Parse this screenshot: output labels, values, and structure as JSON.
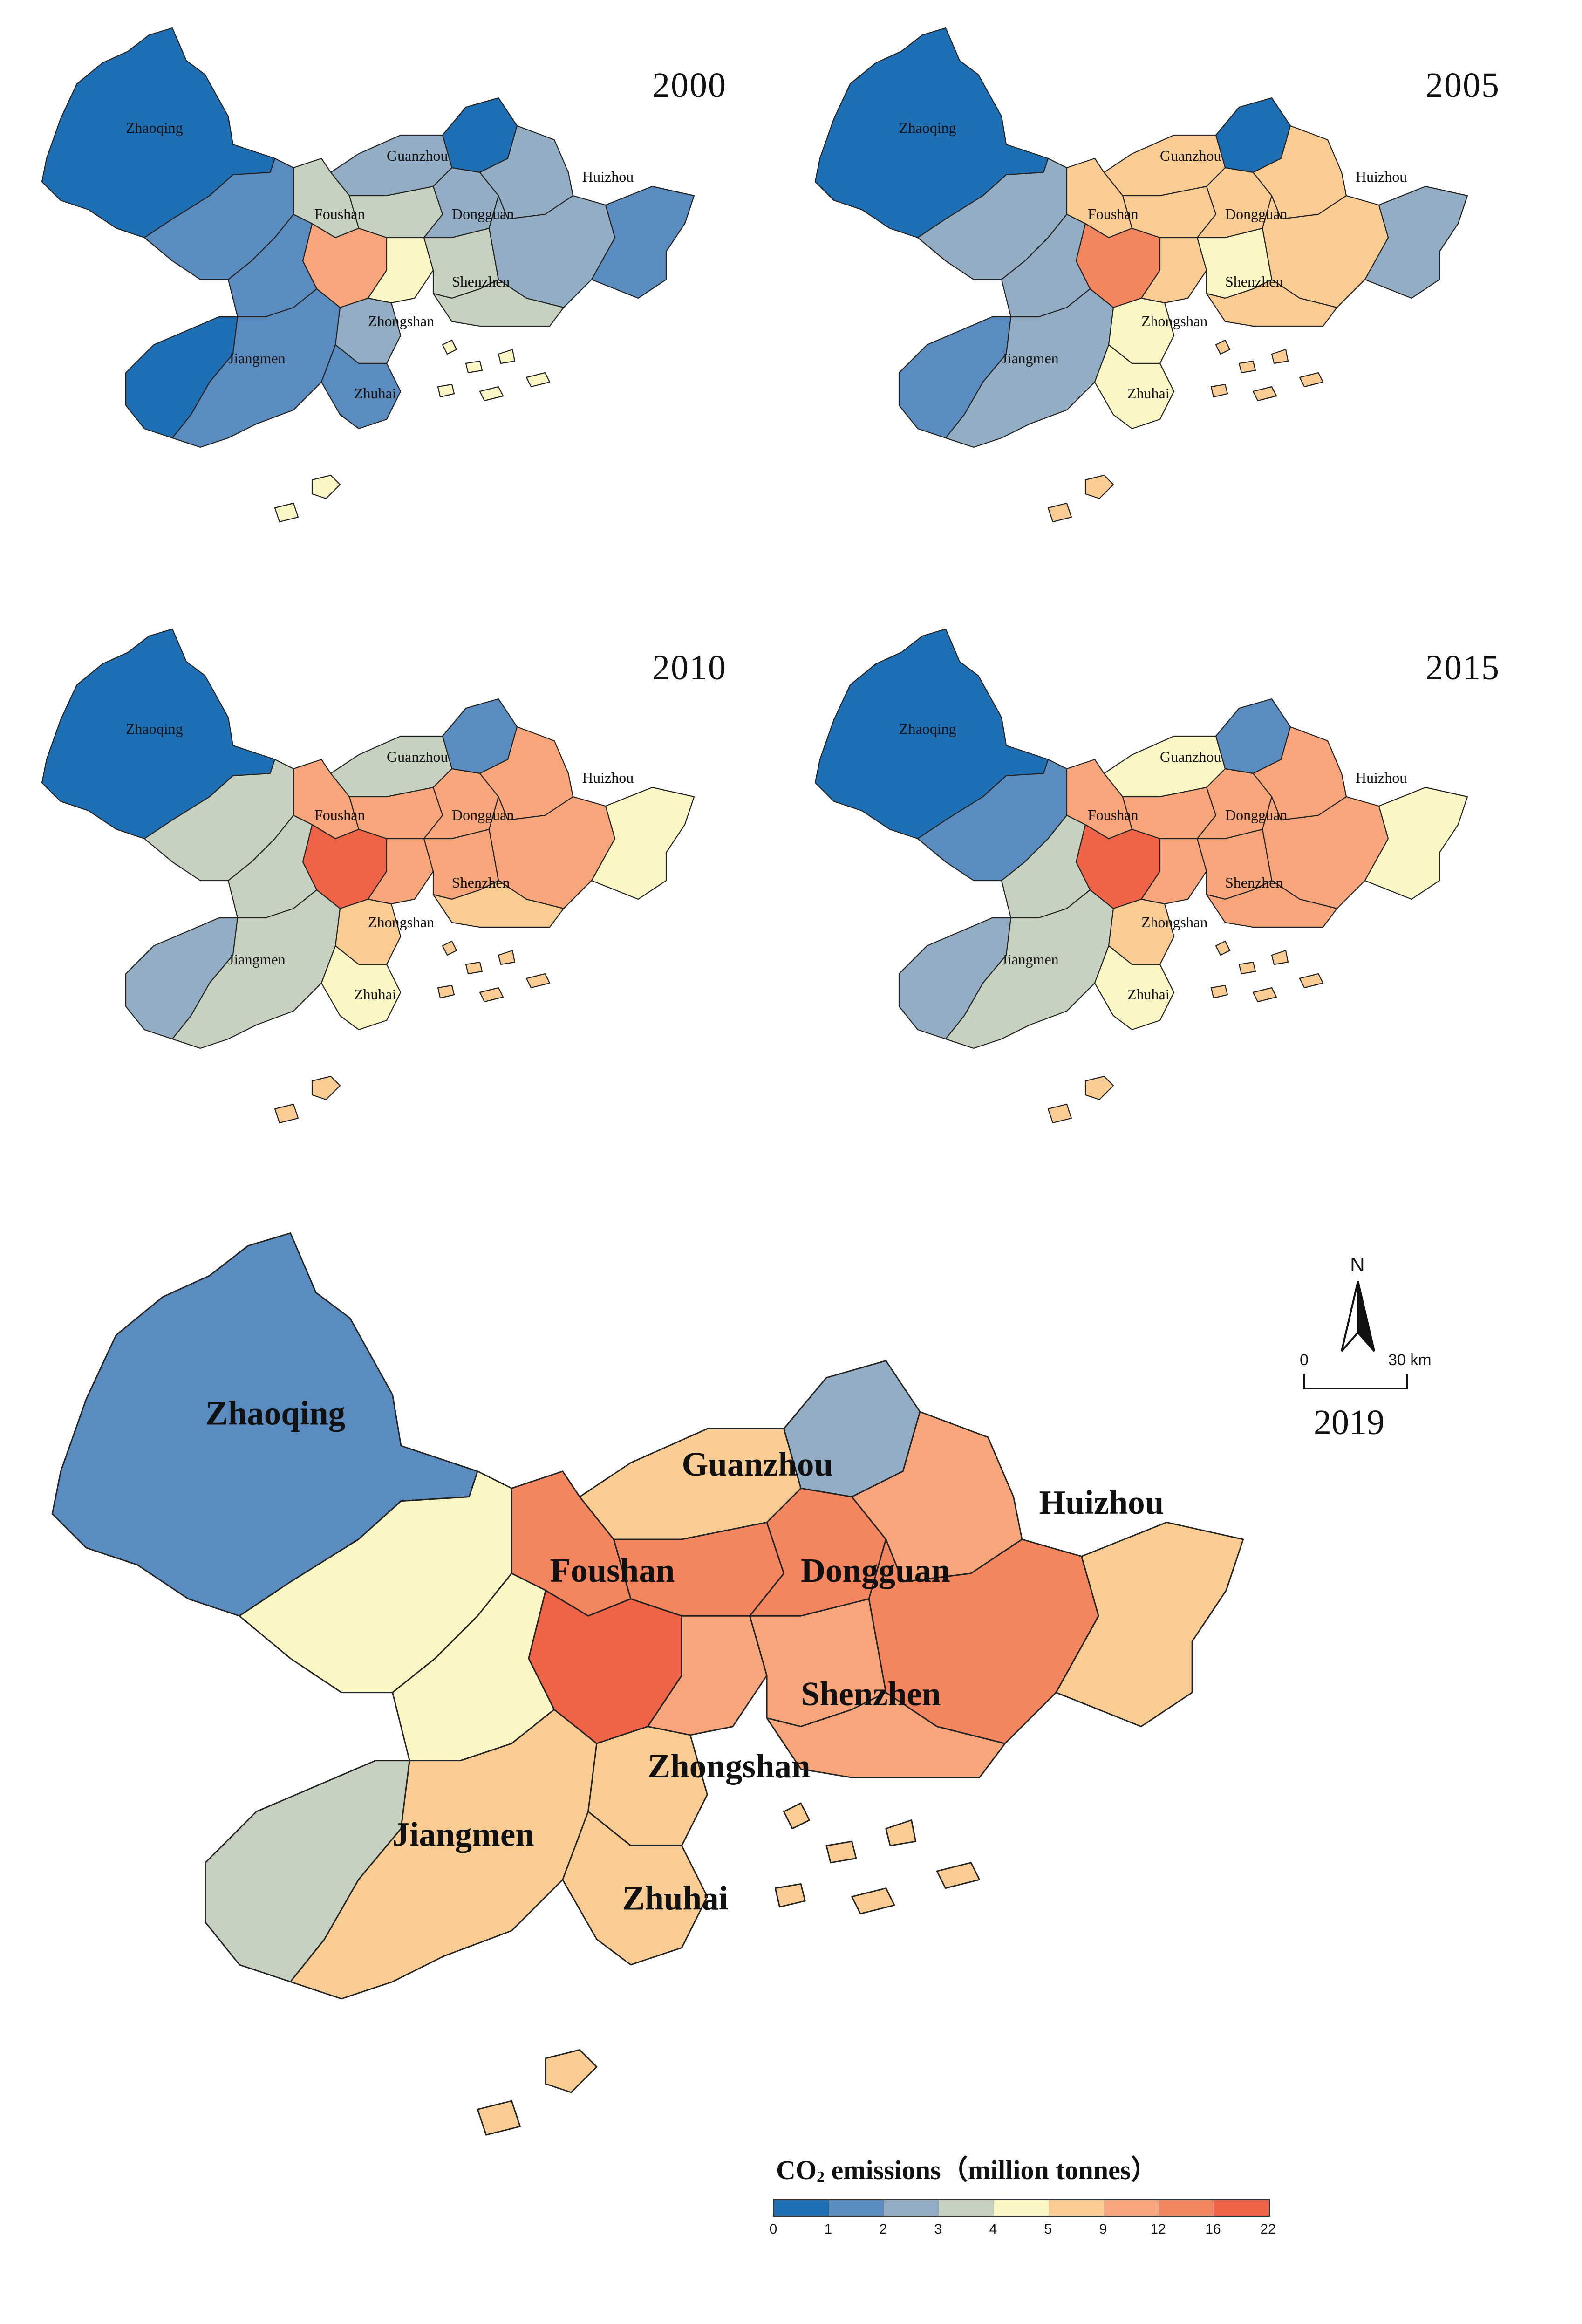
{
  "panels": [
    {
      "year": "2000"
    },
    {
      "year": "2005"
    },
    {
      "year": "2010"
    },
    {
      "year": "2015"
    },
    {
      "year": "2019"
    }
  ],
  "city_labels": [
    "Zhaoqing",
    "Guanzhou",
    "Huizhou",
    "Foushan",
    "Dongguan",
    "Shenzhen",
    "Zhongshan",
    "Jiangmen",
    "Zhuhai"
  ],
  "legend": {
    "title_prefix": "CO",
    "title_sub": "2",
    "title_suffix": " emissions（million  tonnes）",
    "ticks": [
      "0",
      "1",
      "2",
      "3",
      "4",
      "5",
      "9",
      "12",
      "16",
      "22"
    ],
    "colors": [
      "#1f6fb5",
      "#5b8cc0",
      "#93adc4",
      "#c6d1c0",
      "#fbf7c4",
      "#f8cc92",
      "#f6a67a",
      "#f3855f",
      "#ef6446"
    ]
  },
  "north_label": "N",
  "scale": {
    "start": "0",
    "end": "30 km"
  },
  "region_classes": {
    "2000": {
      "zhaoqing": 0,
      "zhaoqing_s": 1,
      "guangzhou_n": 2,
      "guangzhou_c": 3,
      "guangzhou_e": 2,
      "conghua": 0,
      "huizhou_n": 2,
      "huizhou_c": 2,
      "huizhou_e": 1,
      "foshan": 6,
      "foshan_n": 3,
      "jiangmen_n": 1,
      "jiangmen_w": 0,
      "jiangmen_s": 1,
      "dongguan": 3,
      "shenzhen": 3,
      "zhongshan": 2,
      "zhuhai": 1,
      "panyu": 4,
      "islands": 4
    },
    "2005": {
      "zhaoqing": 0,
      "zhaoqing_s": 2,
      "guangzhou_n": 5,
      "guangzhou_c": 5,
      "guangzhou_e": 5,
      "conghua": 0,
      "huizhou_n": 5,
      "huizhou_c": 5,
      "huizhou_e": 2,
      "foshan": 7,
      "foshan_n": 5,
      "jiangmen_n": 2,
      "jiangmen_w": 1,
      "jiangmen_s": 2,
      "dongguan": 4,
      "shenzhen": 5,
      "zhongshan": 4,
      "zhuhai": 4,
      "panyu": 5,
      "islands": 5
    },
    "2010": {
      "zhaoqing": 0,
      "zhaoqing_s": 3,
      "guangzhou_n": 3,
      "guangzhou_c": 6,
      "guangzhou_e": 6,
      "conghua": 1,
      "huizhou_n": 6,
      "huizhou_c": 6,
      "huizhou_e": 4,
      "foshan": 8,
      "foshan_n": 6,
      "jiangmen_n": 3,
      "jiangmen_w": 2,
      "jiangmen_s": 3,
      "dongguan": 6,
      "shenzhen": 5,
      "zhongshan": 5,
      "zhuhai": 4,
      "panyu": 6,
      "islands": 5
    },
    "2015": {
      "zhaoqing": 0,
      "zhaoqing_s": 1,
      "guangzhou_n": 4,
      "guangzhou_c": 6,
      "guangzhou_e": 6,
      "conghua": 1,
      "huizhou_n": 6,
      "huizhou_c": 6,
      "huizhou_e": 4,
      "foshan": 8,
      "foshan_n": 6,
      "jiangmen_n": 3,
      "jiangmen_w": 2,
      "jiangmen_s": 3,
      "dongguan": 6,
      "shenzhen": 6,
      "zhongshan": 5,
      "zhuhai": 4,
      "panyu": 6,
      "islands": 5
    },
    "2019": {
      "zhaoqing": 1,
      "zhaoqing_s": 4,
      "guangzhou_n": 5,
      "guangzhou_c": 7,
      "guangzhou_e": 7,
      "conghua": 2,
      "huizhou_n": 6,
      "huizhou_c": 7,
      "huizhou_e": 5,
      "foshan": 8,
      "foshan_n": 7,
      "jiangmen_n": 4,
      "jiangmen_w": 3,
      "jiangmen_s": 5,
      "dongguan": 6,
      "shenzhen": 6,
      "zhongshan": 5,
      "zhuhai": 5,
      "panyu": 6,
      "islands": 5
    }
  }
}
